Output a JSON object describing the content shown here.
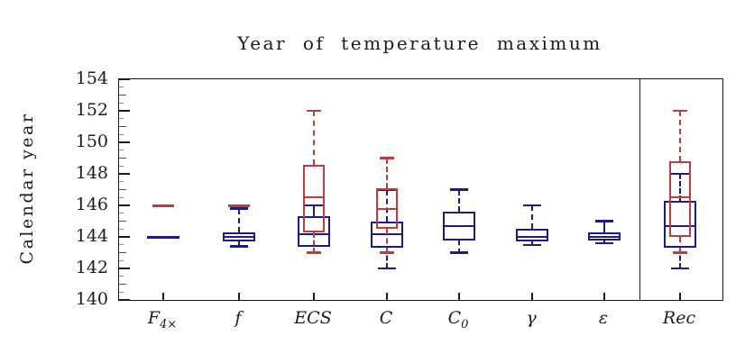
{
  "title": "Year of temperature maximum",
  "ylabel": "Calendar year",
  "axis_color": "#151515",
  "chart_data": {
    "type": "boxplot",
    "title": "Year of temperature maximum",
    "ylabel": "Calendar year",
    "xlabel": "",
    "ylim": [
      140,
      154
    ],
    "ytick_labeled": [
      140,
      142,
      144,
      146,
      148,
      150,
      152,
      154
    ],
    "ytick_minor_step": 0.5,
    "grid": false,
    "legend": "none",
    "categories": [
      {
        "main": "F",
        "sub": "4×"
      },
      {
        "main": "f",
        "sub": ""
      },
      {
        "main": "ECS",
        "sub": ""
      },
      {
        "main": "C",
        "sub": ""
      },
      {
        "main": "C",
        "sub": "0"
      },
      {
        "main": "γ",
        "sub": ""
      },
      {
        "main": "ε",
        "sub": ""
      },
      {
        "main": "Rec",
        "sub": ""
      }
    ],
    "separator_before_category": "Rec",
    "series": [
      {
        "name": "blue-ensemble",
        "color": "#1a1a8c",
        "whisker_style": "dashed",
        "boxes": [
          {
            "min": 144.0,
            "q1": 144.0,
            "med": 144.0,
            "q3": 144.0,
            "max": 144.0
          },
          {
            "min": 143.4,
            "q1": 143.7,
            "med": 144.0,
            "q3": 144.3,
            "max": 145.8
          },
          {
            "min": 143.4,
            "q1": 143.4,
            "med": 144.2,
            "q3": 145.3,
            "max": 146.0
          },
          {
            "min": 142.0,
            "q1": 143.3,
            "med": 144.2,
            "q3": 145.0,
            "max": 147.0
          },
          {
            "min": 143.0,
            "q1": 143.8,
            "med": 144.7,
            "q3": 145.6,
            "max": 147.0
          },
          {
            "min": 143.5,
            "q1": 143.7,
            "med": 144.0,
            "q3": 144.5,
            "max": 146.0
          },
          {
            "min": 143.6,
            "q1": 143.8,
            "med": 144.0,
            "q3": 144.3,
            "max": 145.0
          },
          {
            "min": 142.0,
            "q1": 143.3,
            "med": 144.7,
            "q3": 146.3,
            "max": 148.0
          }
        ]
      },
      {
        "name": "red-ensemble",
        "color": "#c13b3b",
        "whisker_style": "dashed",
        "boxes": [
          {
            "min": 146.0,
            "q1": 146.0,
            "med": 146.0,
            "q3": 146.0,
            "max": 146.0
          },
          {
            "min": 146.0,
            "q1": 146.0,
            "med": 146.0,
            "q3": 146.0,
            "max": 146.0
          },
          {
            "min": 143.0,
            "q1": 144.3,
            "med": 146.5,
            "q3": 148.6,
            "max": 152.0
          },
          {
            "min": 143.0,
            "q1": 144.5,
            "med": 145.8,
            "q3": 147.1,
            "max": 149.0
          },
          null,
          null,
          null,
          {
            "min": 143.0,
            "q1": 144.0,
            "med": 146.5,
            "q3": 148.8,
            "max": 152.0
          }
        ]
      }
    ]
  }
}
